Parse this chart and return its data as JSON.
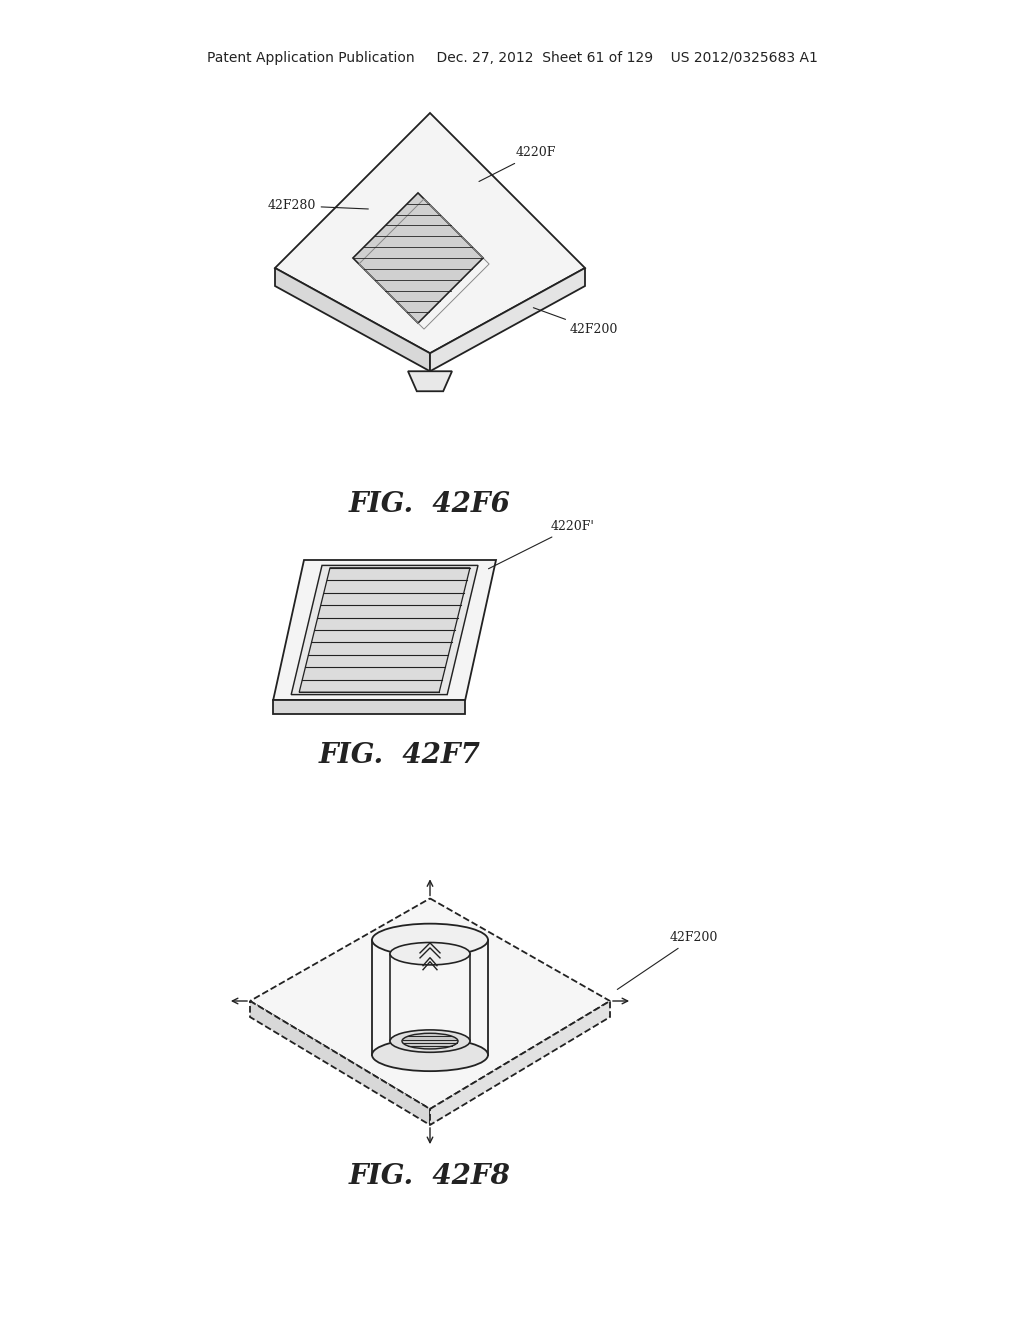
{
  "bg_color": "#ffffff",
  "header_text": "Patent Application Publication     Dec. 27, 2012  Sheet 61 of 129    US 2012/0325683 A1",
  "header_fontsize": 10,
  "fig_labels": [
    "FIG.  42F6",
    "FIG.  42F7",
    "FIG.  42F8"
  ],
  "fig_label_fontsize": 20,
  "dark": "#222222",
  "mid": "#555555",
  "chip_face": "#f4f4f4",
  "chip_side": "#d8d8d8",
  "grid_fill": "#cccccc",
  "grid_line": "#333333"
}
